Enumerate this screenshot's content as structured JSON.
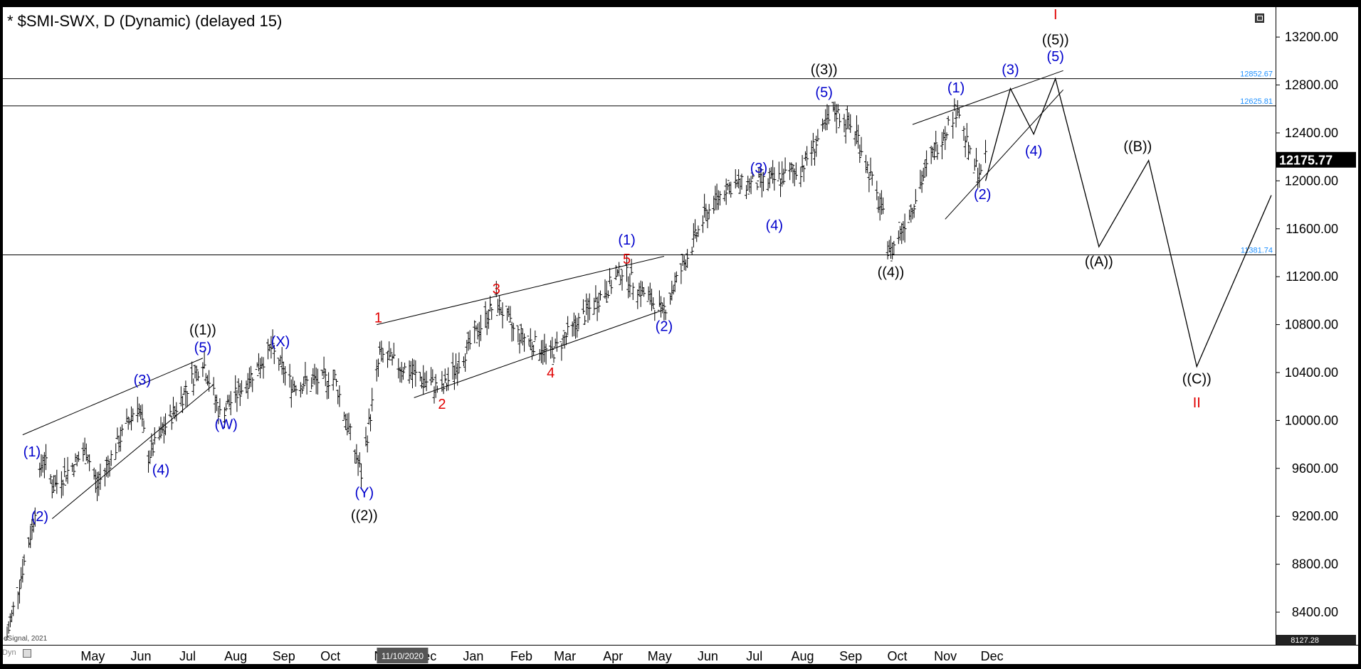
{
  "window": {
    "title": "* $SMI-SWX, D (Dynamic) (delayed 15)",
    "copyright": "eSignal, 2021",
    "dyn_label": "Dyn"
  },
  "colors": {
    "background": "#000000",
    "plot_bg": "#ffffff",
    "bars": "#000000",
    "label_blue": "#0000cc",
    "label_red": "#e00000",
    "level_text": "#1e90ff",
    "last_price_bg": "#000000",
    "date_badge_bg": "#555555"
  },
  "chart_data": {
    "type": "ohlc",
    "symbol": "$SMI-SWX",
    "interval": "D",
    "ylim": [
      8127.28,
      13450
    ],
    "y_ticks": [
      8400,
      8800,
      9200,
      9600,
      10000,
      10400,
      10800,
      11200,
      11600,
      12000,
      12400,
      12800,
      13200
    ],
    "y_tick_labels": [
      "8400.00",
      "8800.00",
      "9200.00",
      "9600.00",
      "10000.00",
      "10400.00",
      "10800.00",
      "11200.00",
      "11600.00",
      "12000.00",
      "12400.00",
      "12800.00",
      "13200.00"
    ],
    "x_labels": [
      "May",
      "Jun",
      "Jul",
      "Aug",
      "Sep",
      "Oct",
      "N",
      "Dec",
      "Jan",
      "Feb",
      "Mar",
      "Apr",
      "May",
      "Jun",
      "Jul",
      "Aug",
      "Sep",
      "Oct",
      "Nov",
      "Dec"
    ],
    "cursor_date": "11/10/2020",
    "last_price": 12175.77,
    "last_price_label": "12175.77",
    "bottom_value_label": "8127.28",
    "levels": [
      {
        "value": 12852.67,
        "label": "12852.67"
      },
      {
        "value": 12625.81,
        "label": "12625.81"
      },
      {
        "value": 11381.74,
        "label": "11381.74"
      }
    ],
    "series_path": [
      {
        "x": "2020-03-16",
        "y": 8200
      },
      {
        "x": "2020-04-01",
        "y": 9100
      },
      {
        "x": "2020-04-08",
        "y": 9700
      },
      {
        "x": "2020-04-15",
        "y": 9450
      },
      {
        "x": "2020-05-06",
        "y": 9750
      },
      {
        "x": "2020-05-13",
        "y": 9450
      },
      {
        "x": "2020-06-08",
        "y": 10150
      },
      {
        "x": "2020-06-15",
        "y": 9700
      },
      {
        "x": "2020-07-20",
        "y": 10500
      },
      {
        "x": "2020-07-31",
        "y": 10050
      },
      {
        "x": "2020-08-13",
        "y": 10250
      },
      {
        "x": "2020-09-02",
        "y": 10600
      },
      {
        "x": "2020-09-15",
        "y": 10300
      },
      {
        "x": "2020-10-13",
        "y": 10350
      },
      {
        "x": "2020-10-30",
        "y": 9550
      },
      {
        "x": "2020-11-11",
        "y": 10550
      },
      {
        "x": "2020-12-01",
        "y": 10400
      },
      {
        "x": "2020-12-21",
        "y": 10250
      },
      {
        "x": "2021-01-25",
        "y": 11000
      },
      {
        "x": "2021-02-05",
        "y": 10750
      },
      {
        "x": "2021-03-01",
        "y": 10550
      },
      {
        "x": "2021-04-16",
        "y": 11250
      },
      {
        "x": "2021-05-12",
        "y": 10900
      },
      {
        "x": "2021-06-08",
        "y": 11700
      },
      {
        "x": "2021-06-22",
        "y": 11950
      },
      {
        "x": "2021-07-22",
        "y": 12000
      },
      {
        "x": "2021-08-09",
        "y": 12100
      },
      {
        "x": "2021-08-31",
        "y": 12580
      },
      {
        "x": "2021-09-14",
        "y": 12400
      },
      {
        "x": "2021-10-01",
        "y": 11700
      },
      {
        "x": "2021-10-06",
        "y": 11400
      },
      {
        "x": "2021-10-20",
        "y": 11800
      },
      {
        "x": "2021-11-01",
        "y": 12200
      },
      {
        "x": "2021-11-18",
        "y": 12620
      },
      {
        "x": "2021-11-26",
        "y": 12200
      },
      {
        "x": "2021-12-03",
        "y": 12050
      },
      {
        "x": "2021-12-06",
        "y": 12175.77
      }
    ],
    "projection": [
      {
        "x": "2021-12-06",
        "y": 12000
      },
      {
        "x": "2021-12-22",
        "y": 12770
      },
      {
        "x": "2022-01-06",
        "y": 12390
      },
      {
        "x": "2022-01-20",
        "y": 12852
      },
      {
        "x": "2022-02-17",
        "y": 11450
      },
      {
        "x": "2022-03-21",
        "y": 12170
      },
      {
        "x": "2022-04-21",
        "y": 10450
      },
      {
        "x": "2022-06-08",
        "y": 11880
      }
    ],
    "trend_lines": [
      {
        "x1": "2020-04-14",
        "y1": 9180,
        "x2": "2020-07-27",
        "y2": 10300
      },
      {
        "x1": "2020-03-26",
        "y1": 9880,
        "x2": "2020-07-20",
        "y2": 10520
      },
      {
        "x1": "2020-11-09",
        "y1": 10800,
        "x2": "2021-05-13",
        "y2": 11370
      },
      {
        "x1": "2020-12-03",
        "y1": 10190,
        "x2": "2021-05-12",
        "y2": 10920
      },
      {
        "x1": "2021-10-20",
        "y1": 12470,
        "x2": "2022-01-25",
        "y2": 12920
      },
      {
        "x1": "2021-11-10",
        "y1": 11680,
        "x2": "2022-01-25",
        "y2": 12760
      }
    ],
    "annotations": [
      {
        "text": "((1))",
        "x": "2020-07-20",
        "y": 10760,
        "color": "black"
      },
      {
        "text": "(5)",
        "x": "2020-07-20",
        "y": 10610,
        "color": "blue"
      },
      {
        "text": "(1)",
        "x": "2020-04-01",
        "y": 9740,
        "color": "blue"
      },
      {
        "text": "(2)",
        "x": "2020-04-06",
        "y": 9200,
        "color": "blue"
      },
      {
        "text": "(3)",
        "x": "2020-06-11",
        "y": 10340,
        "color": "blue"
      },
      {
        "text": "(4)",
        "x": "2020-06-23",
        "y": 9590,
        "color": "blue"
      },
      {
        "text": "(W)",
        "x": "2020-08-04",
        "y": 9970,
        "color": "blue"
      },
      {
        "text": "(X)",
        "x": "2020-09-08",
        "y": 10660,
        "color": "blue"
      },
      {
        "text": "(Y)",
        "x": "2020-11-01",
        "y": 9400,
        "color": "blue"
      },
      {
        "text": "((2))",
        "x": "2020-11-01",
        "y": 9210,
        "color": "black"
      },
      {
        "text": "1",
        "x": "2020-11-10",
        "y": 10860,
        "color": "red"
      },
      {
        "text": "2",
        "x": "2020-12-21",
        "y": 10140,
        "color": "red"
      },
      {
        "text": "3",
        "x": "2021-01-25",
        "y": 11100,
        "color": "red"
      },
      {
        "text": "4",
        "x": "2021-03-01",
        "y": 10400,
        "color": "red"
      },
      {
        "text": "5",
        "x": "2021-04-19",
        "y": 11350,
        "color": "red"
      },
      {
        "text": "(1)",
        "x": "2021-04-19",
        "y": 11510,
        "color": "blue"
      },
      {
        "text": "(2)",
        "x": "2021-05-13",
        "y": 10790,
        "color": "blue"
      },
      {
        "text": "(3)",
        "x": "2021-07-13",
        "y": 12110,
        "color": "blue"
      },
      {
        "text": "(4)",
        "x": "2021-07-23",
        "y": 11630,
        "color": "blue"
      },
      {
        "text": "((3))",
        "x": "2021-08-24",
        "y": 12930,
        "color": "black"
      },
      {
        "text": "(5)",
        "x": "2021-08-24",
        "y": 12740,
        "color": "blue"
      },
      {
        "text": "((4))",
        "x": "2021-10-06",
        "y": 11240,
        "color": "black"
      },
      {
        "text": "(1)",
        "x": "2021-11-17",
        "y": 12780,
        "color": "blue"
      },
      {
        "text": "(2)",
        "x": "2021-12-04",
        "y": 11890,
        "color": "blue"
      },
      {
        "text": "(3)",
        "x": "2021-12-22",
        "y": 12930,
        "color": "blue"
      },
      {
        "text": "(4)",
        "x": "2022-01-06",
        "y": 12250,
        "color": "blue"
      },
      {
        "text": "(5)",
        "x": "2022-01-20",
        "y": 13040,
        "color": "blue"
      },
      {
        "text": "((5))",
        "x": "2022-01-20",
        "y": 13180,
        "color": "black"
      },
      {
        "text": "I",
        "x": "2022-01-20",
        "y": 13390,
        "color": "red"
      },
      {
        "text": "((A))",
        "x": "2022-02-17",
        "y": 11330,
        "color": "black"
      },
      {
        "text": "((B))",
        "x": "2022-03-14",
        "y": 12290,
        "color": "black"
      },
      {
        "text": "((C))",
        "x": "2022-04-21",
        "y": 10350,
        "color": "black"
      },
      {
        "text": "II",
        "x": "2022-04-21",
        "y": 10150,
        "color": "red"
      }
    ]
  }
}
